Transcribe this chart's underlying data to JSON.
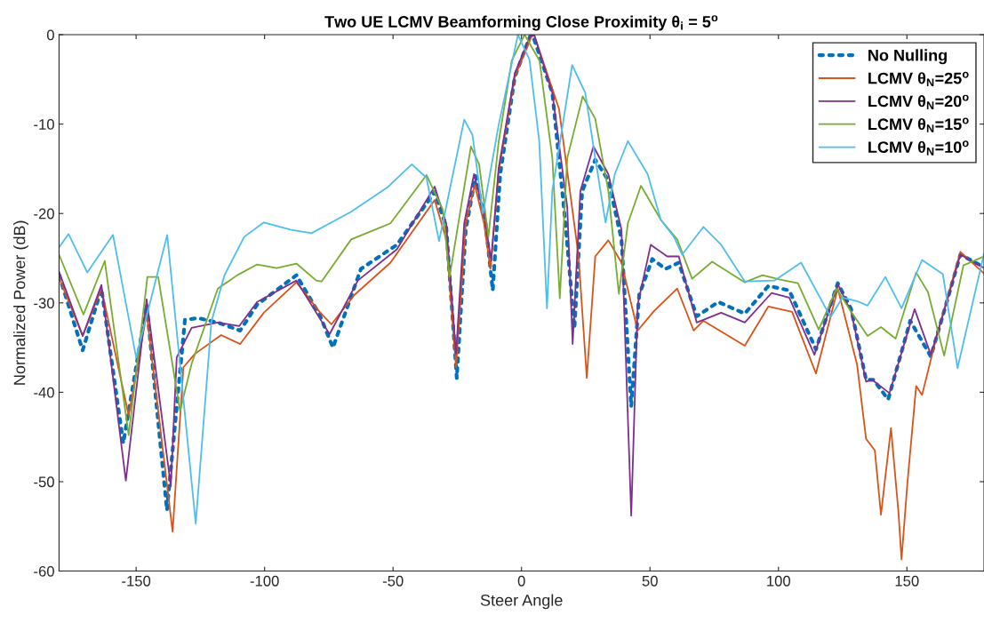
{
  "chart_data": {
    "type": "line",
    "title": "Two UE LCMV Beamforming Close Proximity θ$_{i}$ = 5$^{o}$",
    "xlabel": "Steer Angle",
    "ylabel": "Normalized Power (dB)",
    "xlim": [
      -180,
      180
    ],
    "xticks": [
      -150,
      -100,
      -50,
      0,
      50,
      100,
      150
    ],
    "ylim": [
      -60,
      0
    ],
    "yticks": [
      -60,
      -50,
      -40,
      -30,
      -20,
      -10,
      0
    ],
    "grid": false,
    "legend": "top right",
    "series": [
      {
        "name": "No Nulling",
        "color": "#0072bd",
        "line_style": "dotted",
        "x": [
          -180,
          -170.8,
          -163.5,
          -155,
          -145.9,
          -138,
          -131,
          -125.9,
          -118.2,
          -109.5,
          -102.9,
          -87.6,
          -78.6,
          -73.4,
          -62.5,
          -48.5,
          -33.8,
          -29.3,
          -25.2,
          -21.7,
          -17.9,
          -14,
          -11.2,
          -8.3,
          -2.6,
          3.3,
          4.3,
          12,
          17.1,
          20.6,
          23.6,
          28.7,
          33.8,
          38.9,
          42.7,
          45.8,
          50.9,
          56,
          61.2,
          68.2,
          76.6,
          86.9,
          96.1,
          104.2,
          114.6,
          123.1,
          128.3,
          134.1,
          137,
          142.7,
          151.3,
          159.3,
          165,
          170.8,
          180
        ],
        "values": [
          -26.9,
          -35.3,
          -28.4,
          -45.7,
          -30.2,
          -53.2,
          -31.9,
          -31.7,
          -32.2,
          -33.1,
          -30.2,
          -26.9,
          -31.3,
          -35,
          -26.2,
          -23.5,
          -17.6,
          -21.5,
          -38.4,
          -21.8,
          -15.8,
          -21.1,
          -28.6,
          -15.6,
          -4.7,
          -0.2,
          0,
          -6.5,
          -21.1,
          -32.8,
          -17.5,
          -14,
          -16.3,
          -22.9,
          -41.6,
          -29.1,
          -25.1,
          -26.2,
          -25.5,
          -31.5,
          -29.9,
          -31.2,
          -28.1,
          -28.6,
          -35.2,
          -27.8,
          -30.7,
          -38.6,
          -38.6,
          -40.8,
          -32,
          -36,
          -30.4,
          -24.6,
          -26
        ]
      },
      {
        "name": "LCMV θ$_{N}$=25$^{o}$",
        "color": "#d95319",
        "line_style": "solid",
        "x": [
          -180,
          -170.8,
          -163.5,
          -152.9,
          -145.9,
          -135.8,
          -131.6,
          -127.1,
          -116.9,
          -109.5,
          -100.3,
          -87.6,
          -78.6,
          -74,
          -65,
          -51,
          -33.8,
          -29.3,
          -25.5,
          -21.7,
          -18.2,
          -14.6,
          -12.1,
          -8.9,
          -2.6,
          3.9,
          4.9,
          14.6,
          22.2,
          25.4,
          28.7,
          33.8,
          38.9,
          45.2,
          51.6,
          60.6,
          67,
          70.8,
          86.9,
          96.1,
          105.3,
          114.6,
          123.1,
          130.6,
          134.1,
          137.5,
          139.9,
          143.8,
          146.7,
          147.9,
          150.2,
          153.6,
          155.9,
          161.6,
          170.8,
          180
        ],
        "values": [
          -27.2,
          -33.7,
          -28.4,
          -42.6,
          -31.2,
          -55.6,
          -37.2,
          -35.7,
          -33.6,
          -34.6,
          -31.1,
          -27.7,
          -31,
          -32.4,
          -29.1,
          -25.5,
          -18.5,
          -22.9,
          -37.2,
          -21.1,
          -16.8,
          -21.1,
          -26.2,
          -15.3,
          -4.7,
          -0.2,
          0,
          -8.3,
          -24.8,
          -38.4,
          -24.8,
          -23,
          -25.5,
          -33.1,
          -30.9,
          -28.4,
          -33.1,
          -32,
          -34.8,
          -30.4,
          -31,
          -37.9,
          -28.4,
          -36.9,
          -45.2,
          -46.5,
          -53.7,
          -44,
          -53.4,
          -58.7,
          -50.1,
          -39.3,
          -40.3,
          -33.7,
          -24.3,
          -26.7
        ]
      },
      {
        "name": "LCMV θ$_{N}$=20$^{o}$",
        "color": "#7e2f8e",
        "line_style": "solid",
        "x": [
          -180,
          -170.8,
          -163.5,
          -154,
          -145.9,
          -136.5,
          -134.2,
          -128.4,
          -118.2,
          -109.9,
          -102.9,
          -87.6,
          -78.6,
          -74.7,
          -63.7,
          -48.5,
          -33.8,
          -29.3,
          -25.5,
          -22.3,
          -18.5,
          -14.6,
          -11.8,
          -8.9,
          -2.6,
          3.3,
          4.9,
          12,
          17.8,
          19.9,
          22.9,
          28,
          33.8,
          38.9,
          42.7,
          45.2,
          50.3,
          56.7,
          61.2,
          68.2,
          77.7,
          86.9,
          97.3,
          104.2,
          114,
          123.1,
          128.3,
          134.1,
          136.4,
          143.2,
          153,
          159.3,
          165,
          170.8,
          180
        ],
        "values": [
          -26.5,
          -33.7,
          -28,
          -49.9,
          -29.6,
          -50.5,
          -36.1,
          -32.8,
          -32.2,
          -32.6,
          -29.9,
          -27.5,
          -31.7,
          -33.5,
          -27.5,
          -24,
          -17,
          -21.1,
          -35.7,
          -21.1,
          -15.6,
          -20,
          -25.3,
          -14.9,
          -4.3,
          -0.2,
          0,
          -6.5,
          -19.3,
          -34.6,
          -17.5,
          -12.5,
          -15.6,
          -21.8,
          -53.8,
          -30.2,
          -23.5,
          -24.8,
          -24.8,
          -32.2,
          -31.1,
          -32.2,
          -28.9,
          -29.4,
          -35.8,
          -27.9,
          -31,
          -38.8,
          -38.6,
          -40.1,
          -30.7,
          -35.8,
          -30.4,
          -24.6,
          -26.1
        ]
      },
      {
        "name": "LCMV θ$_{N}$=15$^{o}$",
        "color": "#77ac30",
        "line_style": "solid",
        "x": [
          -180,
          -170.5,
          -162.2,
          -152.9,
          -145.6,
          -141.4,
          -132.9,
          -128.4,
          -118.2,
          -110.6,
          -102.9,
          -95.3,
          -87.6,
          -79.9,
          -77.8,
          -66.3,
          -51,
          -37,
          -30.6,
          -28,
          -19.7,
          -16.5,
          -12.9,
          -8.9,
          -3.8,
          1.2,
          7,
          12,
          14.9,
          17.8,
          23.8,
          28.7,
          33.8,
          37.9,
          41.4,
          46.5,
          54.2,
          60.6,
          66.4,
          74.2,
          86.9,
          93.8,
          100.7,
          107.6,
          115.7,
          122.6,
          128.3,
          134.7,
          139.9,
          145.6,
          153.6,
          158.2,
          164.5,
          172,
          180
        ],
        "values": [
          -24.6,
          -31.3,
          -25.3,
          -44.8,
          -27.1,
          -27.1,
          -42.1,
          -36.8,
          -28.4,
          -26.9,
          -25.7,
          -26.1,
          -25.6,
          -27.5,
          -27.6,
          -22.9,
          -21.1,
          -15.7,
          -19.6,
          -27.1,
          -12.5,
          -14.5,
          -22.6,
          -12,
          -2.9,
          0,
          -2.9,
          -13.8,
          -29.5,
          -13.8,
          -6.9,
          -9.4,
          -17.5,
          -29,
          -21.1,
          -16.9,
          -20.7,
          -22.9,
          -27.3,
          -25.4,
          -27.7,
          -26.9,
          -27.4,
          -27.8,
          -33,
          -28.4,
          -31,
          -33.7,
          -32.7,
          -34,
          -26.6,
          -28.8,
          -35.9,
          -25.8,
          -24.8
        ]
      },
      {
        "name": "LCMV θ$_{N}$=10$^{o}$",
        "color": "#4dbeee",
        "line_style": "solid",
        "x": [
          -180,
          -176.3,
          -169,
          -159,
          -150,
          -137.9,
          -126.8,
          -120.7,
          -115.6,
          -107.9,
          -100.3,
          -90,
          -81.7,
          -66.3,
          -52.3,
          -42.7,
          -37,
          -32.1,
          -22.3,
          -19.1,
          -15,
          -8.9,
          -1.4,
          3.1,
          6.9,
          9.9,
          12,
          19.7,
          24.8,
          28.7,
          32.7,
          36.3,
          41.4,
          49.1,
          54.2,
          59.3,
          62.5,
          70.8,
          77.7,
          86.9,
          98.4,
          108.8,
          120.3,
          124.9,
          130.6,
          134.7,
          141.6,
          147.9,
          155.9,
          164,
          169.7,
          180
        ],
        "values": [
          -23.8,
          -22.3,
          -26.6,
          -22.4,
          -36.1,
          -22.4,
          -54.7,
          -32.1,
          -26.9,
          -22.6,
          -21,
          -21.8,
          -22.2,
          -19.8,
          -17.1,
          -14.5,
          -16,
          -23.1,
          -9.5,
          -11.2,
          -20,
          -10.1,
          0,
          -2.8,
          -11.9,
          -30.6,
          -17.4,
          -3.4,
          -6.5,
          -13.8,
          -21,
          -15.6,
          -11.9,
          -15.6,
          -20.7,
          -22.6,
          -24.6,
          -21.5,
          -23.5,
          -27.6,
          -27.5,
          -25.5,
          -31.6,
          -29.4,
          -29.8,
          -30.3,
          -27.1,
          -30.6,
          -25.2,
          -26.8,
          -37.3,
          -24.5
        ]
      }
    ]
  }
}
